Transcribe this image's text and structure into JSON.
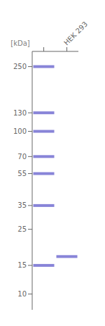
{
  "chart_data": {
    "type": "scatter",
    "marker": "line",
    "ylabel": "[kDa]",
    "categories": [
      null,
      "HEK 293"
    ],
    "values": [
      [
        250,
        130,
        100,
        70,
        55,
        35,
        15
      ],
      [
        17
      ]
    ],
    "log": "y",
    "ylim": [
      8,
      310
    ],
    "yticks": [
      250,
      130,
      100,
      70,
      55,
      35,
      25,
      15,
      10
    ],
    "grid": false
  }
}
